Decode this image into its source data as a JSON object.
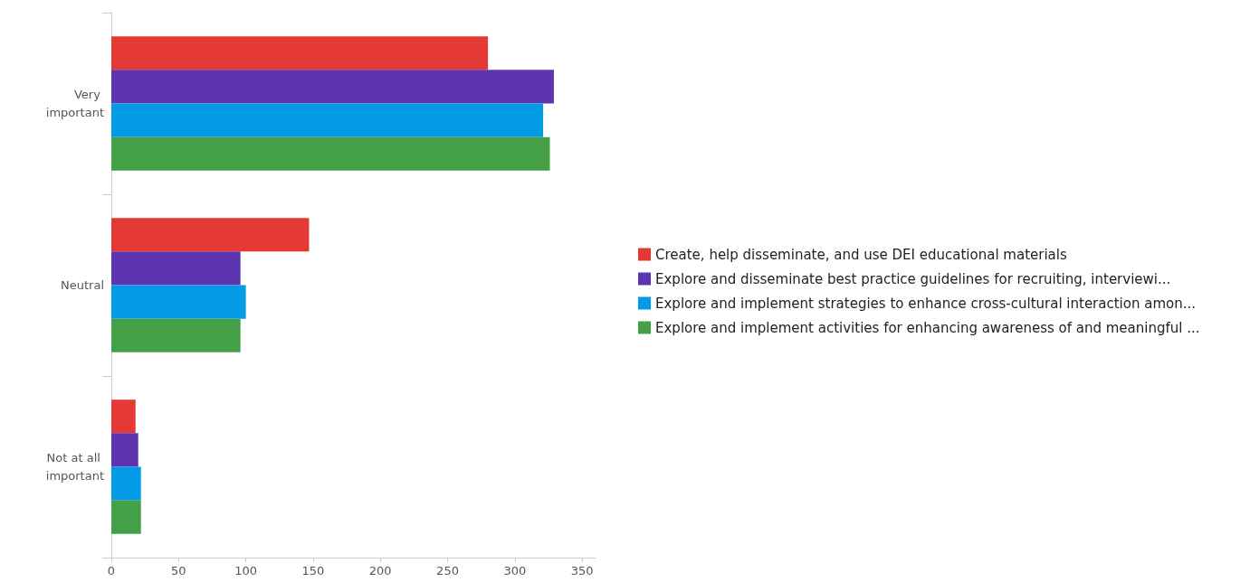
{
  "chart_data": {
    "type": "bar",
    "orientation": "horizontal",
    "categories": [
      "Very important",
      "Neutral",
      "Not at all important"
    ],
    "series": [
      {
        "name": "Create, help disseminate, and use DEI educational materials",
        "color": "#e53935",
        "values": [
          280,
          147,
          18
        ]
      },
      {
        "name": "Explore and disseminate best practice guidelines for recruiting, interviewi...",
        "color": "#5e35b1",
        "values": [
          329,
          96,
          20
        ]
      },
      {
        "name": "Explore and implement strategies to enhance cross-cultural interaction amon...",
        "color": "#039be5",
        "values": [
          321,
          100,
          22
        ]
      },
      {
        "name": "Explore and implement activities for enhancing awareness of and meaningful ...",
        "color": "#43a047",
        "values": [
          326,
          96,
          22
        ]
      }
    ],
    "xlim": [
      0,
      360
    ],
    "xticks": [
      0,
      50,
      100,
      150,
      200,
      250,
      300,
      350
    ],
    "grid": false,
    "legend": "right"
  }
}
